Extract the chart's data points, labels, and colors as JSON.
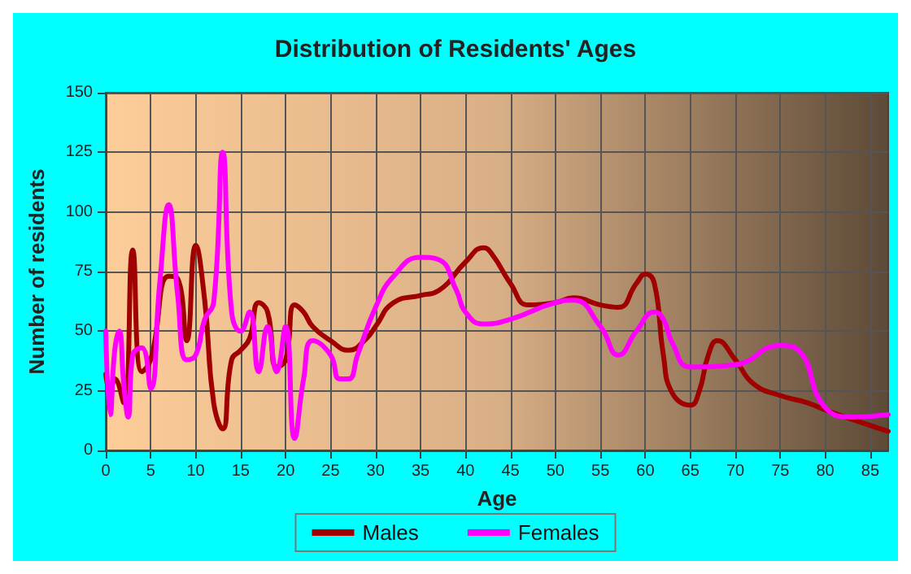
{
  "chart_data": {
    "type": "line",
    "title": "Distribution of Residents' Ages",
    "xlabel": "Age",
    "ylabel": "Number of residents",
    "xlim": [
      0,
      87
    ],
    "ylim": [
      0,
      150
    ],
    "xticks": [
      0,
      5,
      10,
      15,
      20,
      25,
      30,
      35,
      40,
      45,
      50,
      55,
      60,
      65,
      70,
      75,
      80,
      85
    ],
    "yticks": [
      0,
      25,
      50,
      75,
      100,
      125,
      150
    ],
    "grid": true,
    "legend": "bottom",
    "series": [
      {
        "name": "Males",
        "color": "#a00000",
        "x": [
          0,
          0.5,
          1,
          2,
          3,
          4,
          5,
          7,
          8,
          9,
          10,
          11,
          12,
          13,
          14,
          15,
          16,
          17,
          18,
          19,
          20,
          21,
          22,
          23,
          25,
          27,
          29,
          30,
          32,
          35,
          37,
          40,
          42,
          43,
          45,
          47,
          50,
          52,
          55,
          57,
          59,
          60,
          61,
          62,
          63,
          65,
          66,
          67,
          68,
          70,
          72,
          75,
          78,
          80,
          83,
          87
        ],
        "values": [
          32,
          25,
          30,
          20,
          84,
          33,
          38,
          73,
          72,
          46,
          86,
          63,
          20,
          9,
          38,
          42,
          47,
          62,
          58,
          35,
          38,
          61,
          58,
          52,
          46,
          42,
          47,
          52,
          62,
          65,
          67,
          79,
          85,
          82,
          70,
          61,
          62,
          64,
          61,
          60,
          70,
          74,
          70,
          40,
          24,
          19,
          25,
          40,
          46,
          38,
          28,
          23,
          20,
          17,
          13,
          8
        ]
      },
      {
        "name": "Females",
        "color": "#ff00ff",
        "x": [
          0,
          0.5,
          1,
          1.5,
          2,
          2.5,
          3,
          4,
          5,
          6,
          7,
          8,
          9,
          10,
          11,
          12,
          13,
          14,
          15,
          16,
          17,
          18,
          19,
          20,
          21,
          22,
          23,
          25,
          26,
          27,
          28,
          30,
          32,
          35,
          37,
          39,
          40,
          42,
          45,
          50,
          52,
          55,
          57,
          59,
          61,
          62,
          63,
          65,
          70,
          75,
          77,
          80,
          83,
          87
        ],
        "values": [
          50,
          15,
          42,
          50,
          28,
          14,
          40,
          43,
          26,
          70,
          103,
          65,
          38,
          40,
          55,
          62,
          125,
          58,
          50,
          58,
          33,
          52,
          33,
          52,
          5,
          30,
          46,
          40,
          30,
          30,
          40,
          60,
          73,
          81,
          80,
          67,
          58,
          53,
          55,
          62,
          63,
          52,
          40,
          50,
          58,
          55,
          45,
          35,
          36,
          44,
          42,
          18,
          14,
          15
        ]
      }
    ]
  }
}
